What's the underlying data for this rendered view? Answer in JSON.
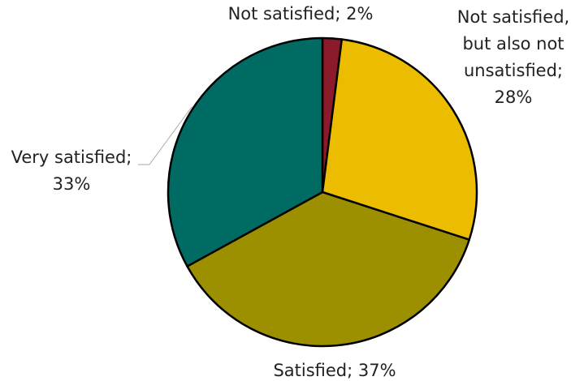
{
  "chart_data": {
    "type": "pie",
    "values": [
      2,
      28,
      37,
      33
    ],
    "labels": [
      [
        "Not satisfied; 2%"
      ],
      [
        "Not satisfied,",
        "but also not",
        "unsatisfied;",
        "28%"
      ],
      [
        "Satisfied; 37%"
      ],
      [
        "Very satisfied;",
        "33%"
      ]
    ],
    "colors": [
      "#8b1a2b",
      "#ecbc00",
      "#9c9000",
      "#006b63"
    ]
  }
}
